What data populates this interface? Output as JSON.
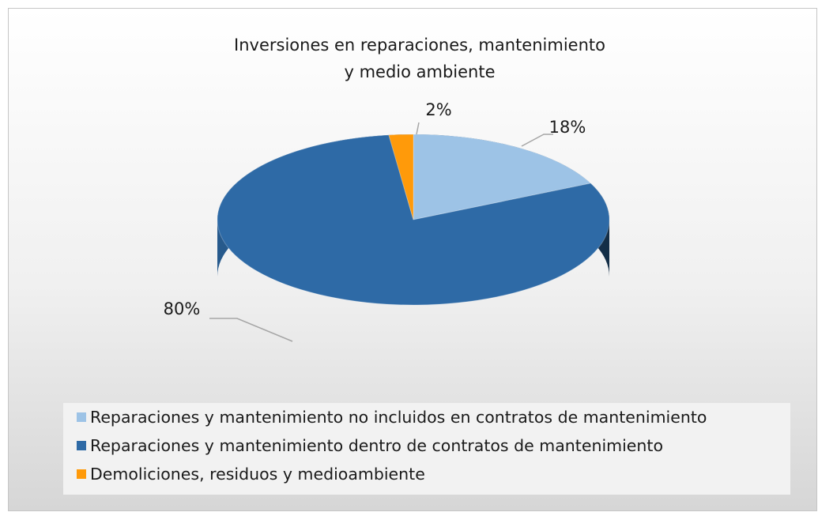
{
  "chart_data": {
    "type": "pie",
    "title": [
      "Inversiones en reparaciones, mantenimiento",
      "y medio ambiente"
    ],
    "categories": [
      "Reparaciones y mantenimiento no incluidos en contratos de mantenimiento",
      "Reparaciones y mantenimiento dentro de contratos de mantenimiento",
      "Demoliciones, residuos y medioambiente"
    ],
    "values": [
      18,
      80,
      2
    ],
    "value_labels": [
      "18%",
      "80%",
      "2%"
    ],
    "colors": [
      "#9dc3e6",
      "#2e6aa6",
      "#ff9a0a"
    ],
    "legend": "bottom"
  }
}
